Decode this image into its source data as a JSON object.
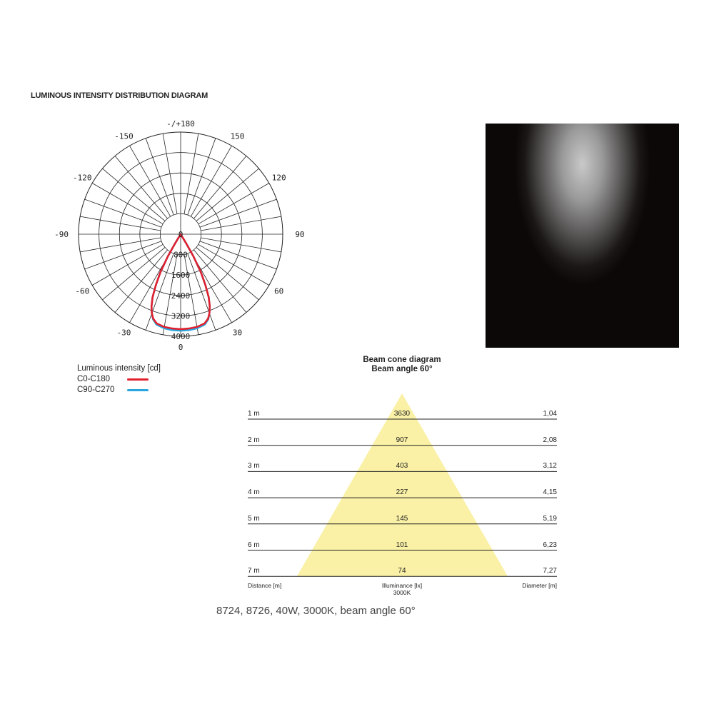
{
  "title": "LUMINOUS INTENSITY DISTRIBUTION DIAGRAM",
  "chart_data": {
    "type": "polar",
    "angle_labels": [
      {
        "angle": 180,
        "label": "-/+180"
      },
      {
        "angle": -150,
        "label": "-150"
      },
      {
        "angle": 150,
        "label": "150"
      },
      {
        "angle": -120,
        "label": "-120"
      },
      {
        "angle": 120,
        "label": "120"
      },
      {
        "angle": -90,
        "label": "-90"
      },
      {
        "angle": 90,
        "label": "90"
      },
      {
        "angle": -60,
        "label": "-60"
      },
      {
        "angle": 60,
        "label": "60"
      },
      {
        "angle": -30,
        "label": "-30"
      },
      {
        "angle": 30,
        "label": "30"
      },
      {
        "angle": 0,
        "label": "0"
      }
    ],
    "radial_ticks": [
      "0",
      "800",
      "1600",
      "2400",
      "3200",
      "4000"
    ],
    "rmax": 4000,
    "angle_grid_step": 10,
    "grid": true,
    "legend_title": "Luminous intensity [cd]",
    "series": [
      {
        "name": "C0-C180",
        "color": "#e0202e",
        "angles": [
          -32,
          -31,
          -30,
          -28,
          -26,
          -24,
          -22,
          -20,
          -18,
          -15,
          -10,
          -5,
          0,
          5,
          10,
          15,
          18,
          20,
          22,
          24,
          26,
          28,
          30,
          31,
          32
        ],
        "values": [
          0,
          400,
          1000,
          1700,
          2200,
          2700,
          3050,
          3300,
          3480,
          3620,
          3690,
          3710,
          3720,
          3710,
          3690,
          3620,
          3480,
          3300,
          3050,
          2700,
          2200,
          1700,
          1000,
          400,
          0
        ]
      },
      {
        "name": "C90-C270",
        "color": "#2aa6df",
        "angles": [
          -32,
          -31,
          -30,
          -28,
          -26,
          -24,
          -22,
          -20,
          -18,
          -15,
          -10,
          -5,
          0,
          5,
          10,
          15,
          18,
          20,
          22,
          24,
          26,
          28,
          30,
          31,
          32
        ],
        "values": [
          0,
          400,
          1000,
          1700,
          2200,
          2700,
          3050,
          3300,
          3500,
          3660,
          3740,
          3770,
          3780,
          3770,
          3740,
          3660,
          3500,
          3300,
          3050,
          2700,
          2200,
          1700,
          1000,
          400,
          0
        ]
      }
    ]
  },
  "beam_cone": {
    "title": "Beam cone diagram",
    "subtitle": "Beam angle 60°",
    "fill_color": "#faf1a6",
    "distance_label": "Distance [m]",
    "illuminance_label": "Illuminance [lx]",
    "cct_label": "3000K",
    "diameter_label": "Diameter [m]",
    "rows": [
      {
        "distance": "1 m",
        "lux": "3630",
        "diameter": "1,04"
      },
      {
        "distance": "2 m",
        "lux": "907",
        "diameter": "2,08"
      },
      {
        "distance": "3 m",
        "lux": "403",
        "diameter": "3,12"
      },
      {
        "distance": "4 m",
        "lux": "227",
        "diameter": "4,15"
      },
      {
        "distance": "5 m",
        "lux": "145",
        "diameter": "5,19"
      },
      {
        "distance": "6 m",
        "lux": "101",
        "diameter": "6,23"
      },
      {
        "distance": "7 m",
        "lux": "74",
        "diameter": "7,27"
      }
    ]
  },
  "caption": "8724, 8726, 40W, 3000K, beam angle 60°"
}
